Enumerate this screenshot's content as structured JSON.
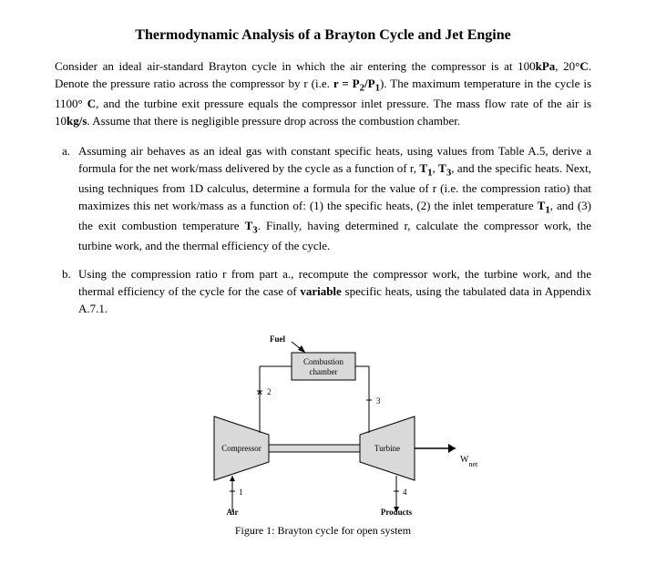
{
  "title": "Thermodynamic Analysis of a Brayton Cycle and Jet Engine",
  "intro_html": "Consider an ideal air-standard Brayton cycle in which the air entering the compressor is at 100<b>kPa</b>, 20<b>°C</b>. Denote the pressure ratio across the compressor by r (i.e. <b>r = P<sub>2</sub>/P<sub>1</sub></b>). The maximum temperature in the cycle is 1100<b>° C</b>, and the turbine exit pressure equals the compressor inlet pressure. The mass flow rate of the air is 10<b>kg/s</b>. Assume that there is negligible pressure drop across the combustion chamber.",
  "items": [
    {
      "marker": "a.",
      "html": "Assuming air behaves as an ideal gas with constant specific heats, using values from Table A.5, derive a formula for the net work/mass delivered by the cycle as a function of r, <b>T<sub>1</sub></b>, <b>T<sub>3</sub></b>, and the specific heats. Next, using techniques from 1D calculus, determine a formula for the value of r (i.e. the compression ratio) that maximizes this net work/mass as a function of: (1) the specific heats, (2) the inlet temperature <b>T<sub>1</sub></b>, and (3) the exit combustion temperature <b>T<sub>3</sub></b>. Finally, having determined r, calculate the compressor work, the turbine work, and the thermal efficiency of the cycle."
    },
    {
      "marker": "b.",
      "html": "Using the compression ratio r from part a., recompute the compressor work, the turbine work, and the thermal efficiency of the cycle for the case of <b>variable</b> specific heats, using the tabulated data in Appendix A.7.1."
    }
  ],
  "figure": {
    "caption": "Figure 1: Brayton cycle for open system",
    "labels": {
      "fuel": "Fuel",
      "combustion": "Combustion\nchamber",
      "compressor": "Compressor",
      "turbine": "Turbine",
      "air": "Air",
      "products": "Products",
      "wnet": "Wnet",
      "n1": "1",
      "n2": "2",
      "n3": "3",
      "n4": "4"
    },
    "colors": {
      "fill": "#d9d9d9",
      "stroke": "#000000",
      "bg": "#ffffff"
    }
  }
}
